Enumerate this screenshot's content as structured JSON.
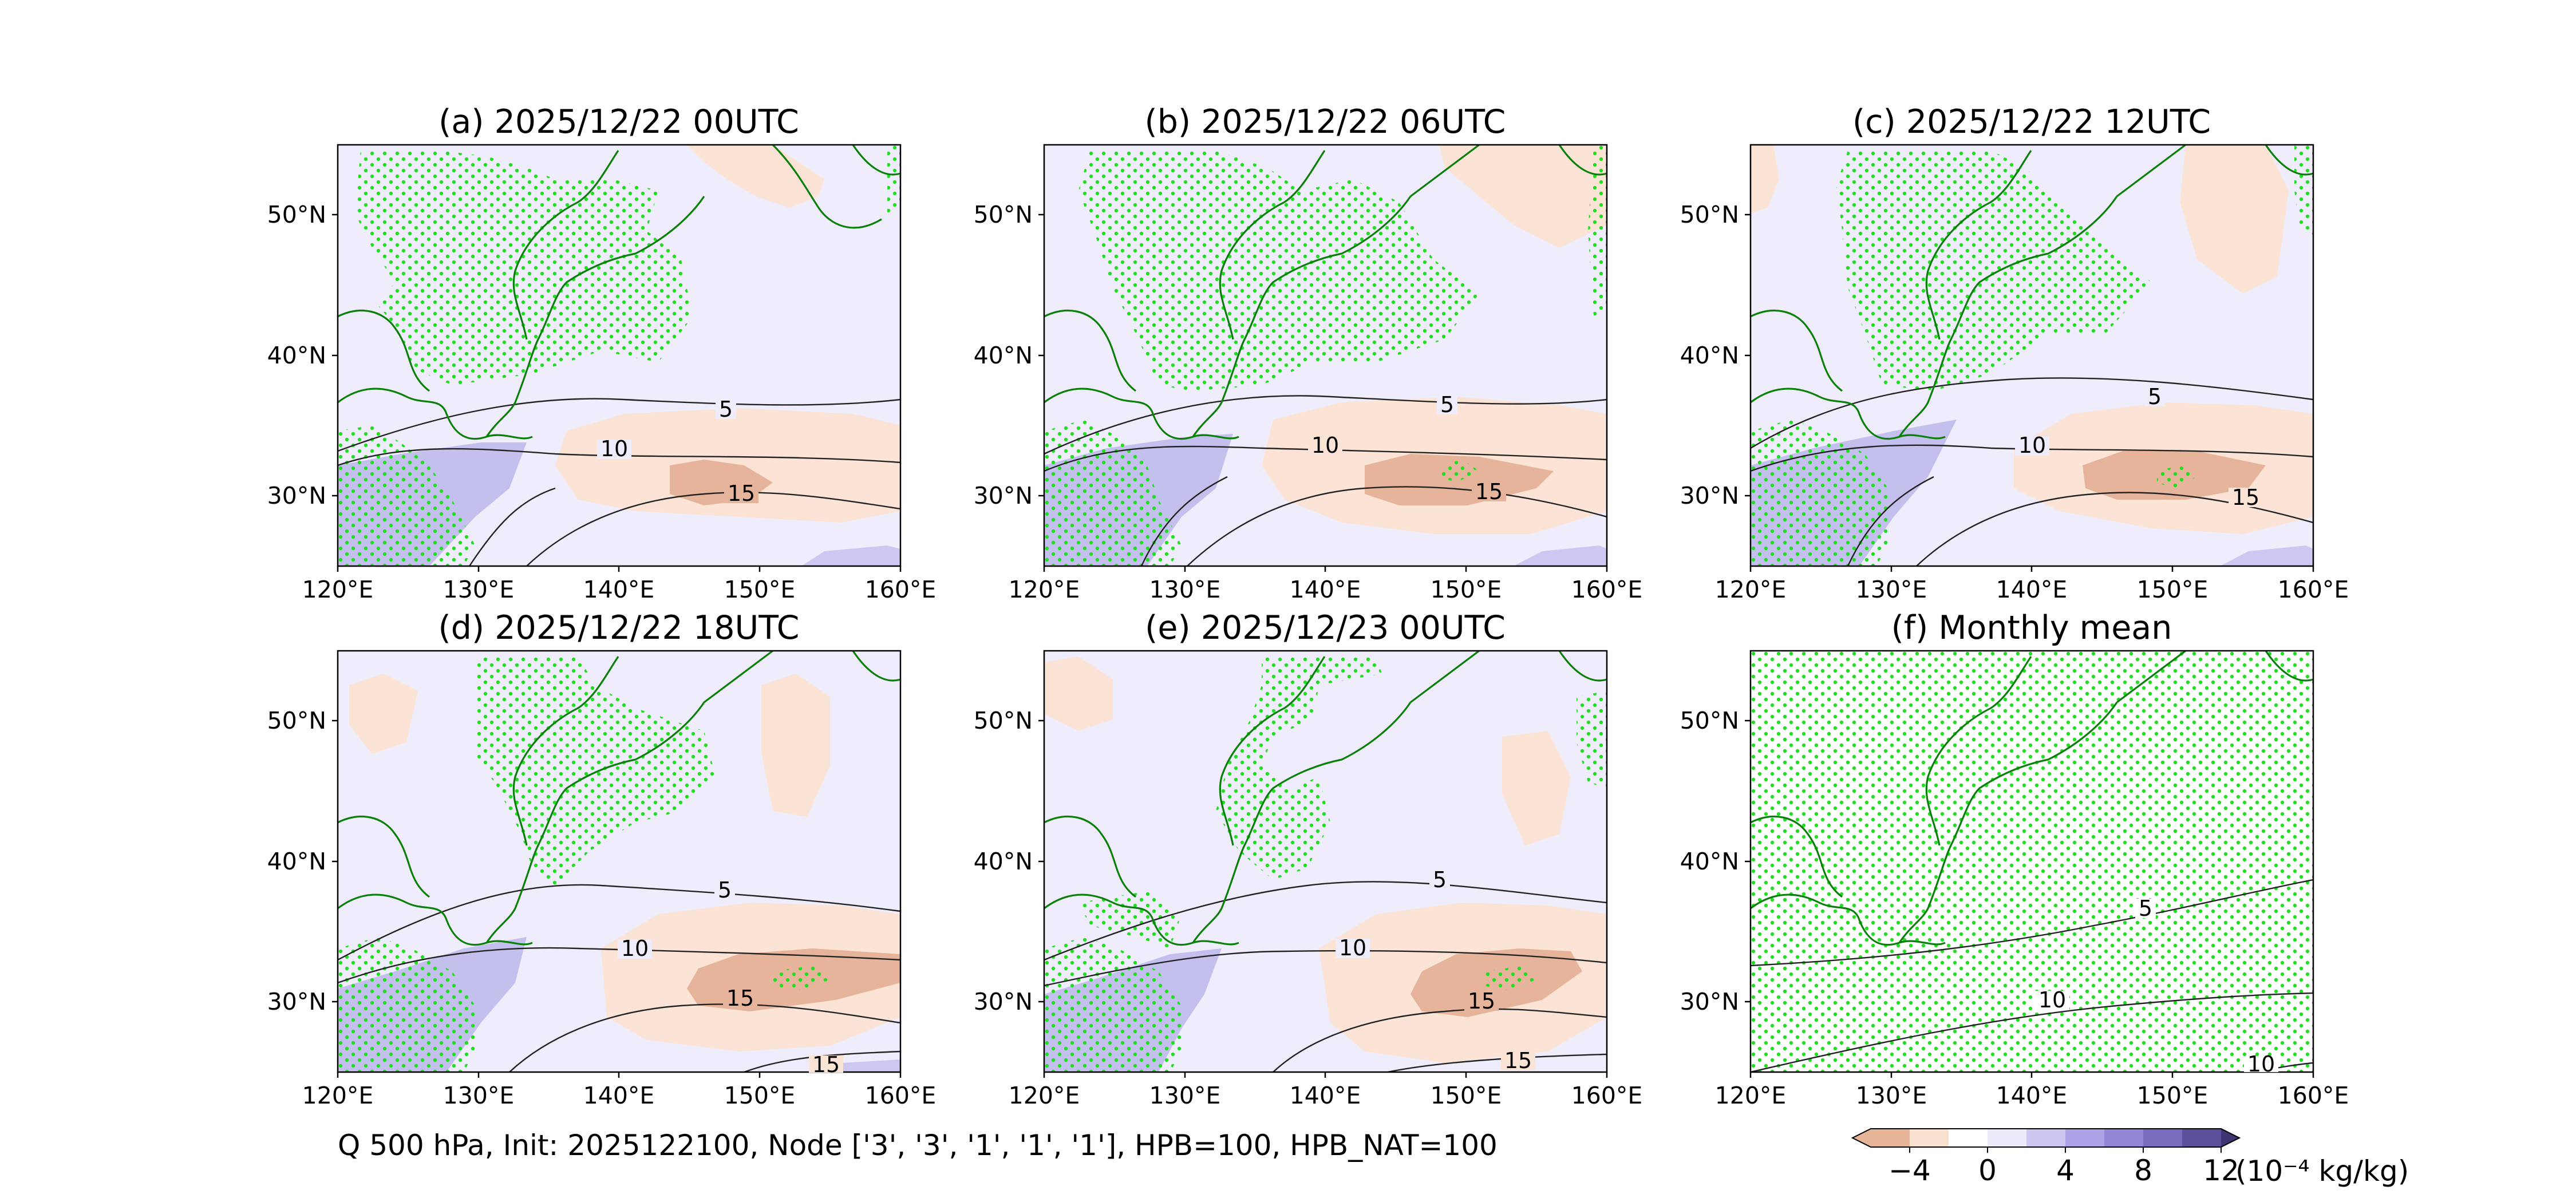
{
  "footer": "Q 500 hPa, Init: 2025122100, Node ['3', '3', '1', '1', '1'], HPB=100, HPB_NAT=100",
  "colorbar": {
    "unit": "(10⁻⁴ kg/kg)",
    "ticks": [
      "−4",
      "0",
      "4",
      "8",
      "12"
    ],
    "tick_values": [
      -4,
      0,
      4,
      8,
      12
    ],
    "levels": [
      -6,
      -4,
      -2,
      0,
      2,
      4,
      6,
      8,
      10,
      12
    ],
    "colors": [
      "#e6b496",
      "#f8e0cf",
      "#ffffff",
      "#eeeaf9",
      "#cdc6f0",
      "#aea2e6",
      "#9485d6",
      "#7a6bbf",
      "#5e4f9c"
    ],
    "extend": "both"
  },
  "chart_data": [
    {
      "type": "map",
      "title": "(a) 2025/12/22 00UTC",
      "xlim": [
        120,
        160
      ],
      "ylim": [
        25,
        55
      ],
      "xticks": [
        "120°E",
        "130°E",
        "140°E",
        "150°E",
        "160°E"
      ],
      "yticks": [
        "30°N",
        "40°N",
        "50°N"
      ],
      "contour_labels": [
        "5",
        "10",
        "15"
      ]
    },
    {
      "type": "map",
      "title": "(b) 2025/12/22 06UTC",
      "xlim": [
        120,
        160
      ],
      "ylim": [
        25,
        55
      ],
      "xticks": [
        "120°E",
        "130°E",
        "140°E",
        "150°E",
        "160°E"
      ],
      "yticks": [
        "30°N",
        "40°N",
        "50°N"
      ],
      "contour_labels": [
        "5",
        "10",
        "15"
      ]
    },
    {
      "type": "map",
      "title": "(c) 2025/12/22 12UTC",
      "xlim": [
        120,
        160
      ],
      "ylim": [
        25,
        55
      ],
      "xticks": [
        "120°E",
        "130°E",
        "140°E",
        "150°E",
        "160°E"
      ],
      "yticks": [
        "30°N",
        "40°N",
        "50°N"
      ],
      "contour_labels": [
        "5",
        "10",
        "15"
      ]
    },
    {
      "type": "map",
      "title": "(d) 2025/12/22 18UTC",
      "xlim": [
        120,
        160
      ],
      "ylim": [
        25,
        55
      ],
      "xticks": [
        "120°E",
        "130°E",
        "140°E",
        "150°E",
        "160°E"
      ],
      "yticks": [
        "30°N",
        "40°N",
        "50°N"
      ],
      "contour_labels": [
        "5",
        "10",
        "15",
        "15"
      ]
    },
    {
      "type": "map",
      "title": "(e) 2025/12/23 00UTC",
      "xlim": [
        120,
        160
      ],
      "ylim": [
        25,
        55
      ],
      "xticks": [
        "120°E",
        "130°E",
        "140°E",
        "150°E",
        "160°E"
      ],
      "yticks": [
        "30°N",
        "40°N",
        "50°N"
      ],
      "contour_labels": [
        "5",
        "10",
        "15",
        "15"
      ]
    },
    {
      "type": "map",
      "title": "(f) Monthly mean",
      "xlim": [
        120,
        160
      ],
      "ylim": [
        25,
        55
      ],
      "xticks": [
        "120°E",
        "130°E",
        "140°E",
        "150°E",
        "160°E"
      ],
      "yticks": [
        "30°N",
        "40°N",
        "50°N"
      ],
      "contour_labels": [
        "5",
        "10",
        "10"
      ]
    }
  ]
}
